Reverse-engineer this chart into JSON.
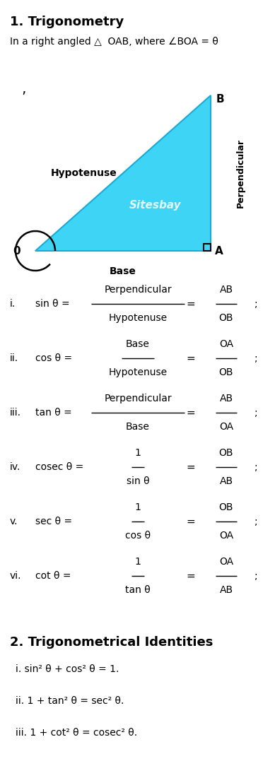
{
  "title1": "1. Trigonometry",
  "subtitle": "In a right angled △  OAB, where ∠BOA = θ",
  "triangle_color": "#3DD4F5",
  "triangle_edge_color": "#1AAAD4",
  "formulas": [
    {
      "num": "i.",
      "lhs": "sin θ = ",
      "num1": "Perpendicular",
      "den1": "Hypotenuse",
      "num2": "AB",
      "den2": "OB"
    },
    {
      "num": "ii.",
      "lhs": "cos θ = ",
      "num1": "Base",
      "den1": "Hypotenuse",
      "num2": "OA",
      "den2": "OB"
    },
    {
      "num": "iii.",
      "lhs": "tan θ = ",
      "num1": "Perpendicular",
      "den1": "Base",
      "num2": "AB",
      "den2": "OA"
    },
    {
      "num": "iv.",
      "lhs": "cosec θ = ",
      "num1": "1",
      "den1": "sin θ",
      "num2": "OB",
      "den2": "AB"
    },
    {
      "num": "v.",
      "lhs": "sec θ = ",
      "num1": "1",
      "den1": "cos θ",
      "num2": "OB",
      "den2": "OA"
    },
    {
      "num": "vi.",
      "lhs": "cot θ = ",
      "num1": "1",
      "den1": "tan θ",
      "num2": "OA",
      "den2": "AB"
    }
  ],
  "title2": "2. Trigonometrical Identities",
  "bg_color": "#ffffff",
  "text_color": "#000000"
}
